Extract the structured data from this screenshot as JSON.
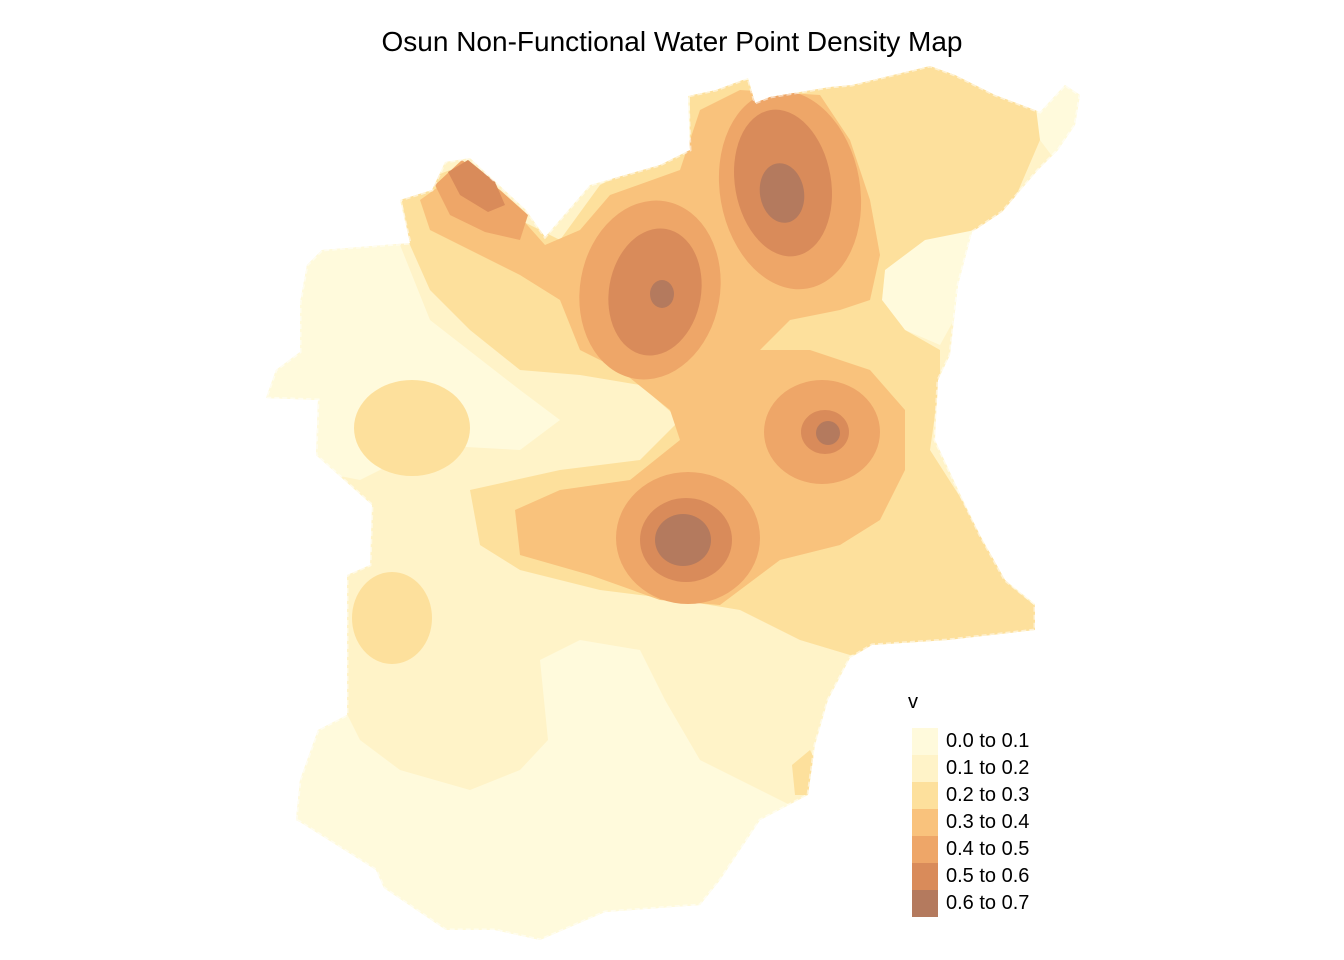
{
  "map": {
    "title": "Osun Non-Functional Water Point Density Map",
    "region": "Osun",
    "legend": {
      "title": "v",
      "classes": [
        {
          "label": "0.0 to 0.1",
          "min": 0.0,
          "max": 0.1,
          "color": "#fffadc"
        },
        {
          "label": "0.1 to 0.2",
          "min": 0.1,
          "max": 0.2,
          "color": "#fff3c8"
        },
        {
          "label": "0.2 to 0.3",
          "min": 0.2,
          "max": 0.3,
          "color": "#fde09c"
        },
        {
          "label": "0.3 to 0.4",
          "min": 0.3,
          "max": 0.4,
          "color": "#f9c27c"
        },
        {
          "label": "0.4 to 0.5",
          "min": 0.4,
          "max": 0.5,
          "color": "#eea668"
        },
        {
          "label": "0.5 to 0.6",
          "min": 0.5,
          "max": 0.6,
          "color": "#d98b5a"
        },
        {
          "label": "0.6 to 0.7",
          "min": 0.6,
          "max": 0.7,
          "color": "#b47a5e"
        }
      ]
    }
  }
}
